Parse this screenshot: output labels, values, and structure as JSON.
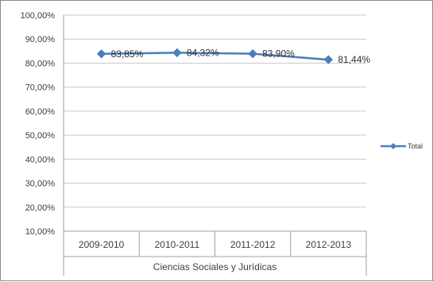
{
  "chart_data": {
    "type": "line",
    "categories": [
      "2009-2010",
      "2010-2011",
      "2011-2012",
      "2012-2013"
    ],
    "category_group": "Ciencias Sociales y Jurídicas",
    "series": [
      {
        "name": "Total",
        "values": [
          83.85,
          84.32,
          83.9,
          81.44
        ],
        "labels": [
          "83,85%",
          "84,32%",
          "83,90%",
          "81,44%"
        ],
        "color": "#4a7ebb"
      }
    ],
    "y_ticks": [
      "100,00%",
      "90,00%",
      "80,00%",
      "70,00%",
      "60,00%",
      "50,00%",
      "40,00%",
      "30,00%",
      "20,00%",
      "10,00%"
    ],
    "ylim": [
      10,
      100
    ],
    "grid": true,
    "legend": "right"
  }
}
